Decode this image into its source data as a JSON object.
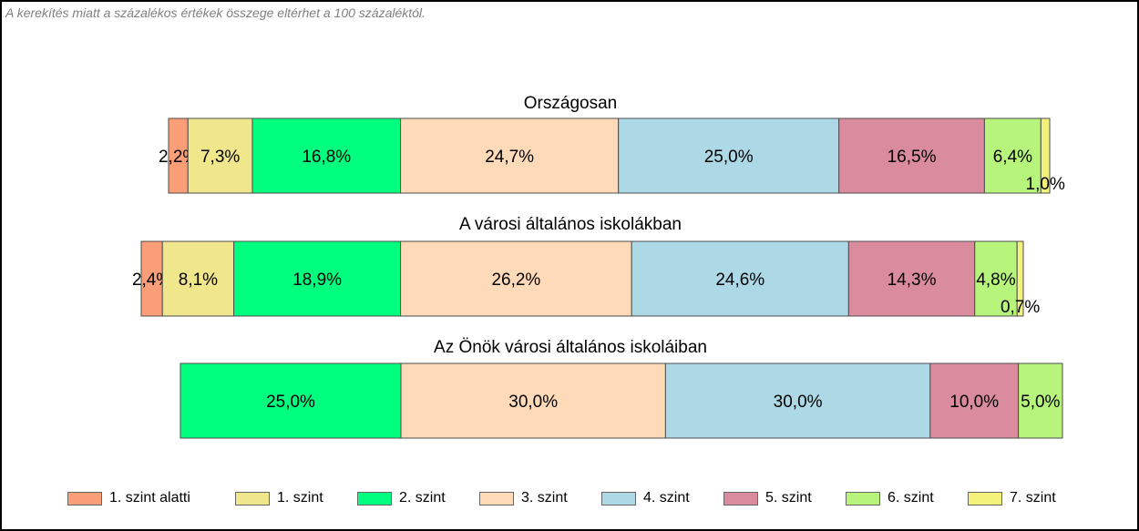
{
  "note": "A kerekítés miatt a  százalékos értékek összege eltérhet a 100 százaléktól.",
  "colors": [
    "#FA9E78",
    "#F0E68C",
    "#00FF7F",
    "#FFDAB9",
    "#ADD8E6",
    "#DB8B9E",
    "#B7F47C",
    "#F2F27A"
  ],
  "chart_data": {
    "type": "bar",
    "orientation": "horizontal-stacked-100",
    "categories": [
      "1. szint alatti",
      "1. szint",
      "2. szint",
      "3. szint",
      "4. szint",
      "5. szint",
      "6. szint",
      "7. szint"
    ],
    "groups": [
      {
        "title": "Országosan",
        "values": [
          2.2,
          7.3,
          16.8,
          24.7,
          25.0,
          16.5,
          6.4,
          1.0
        ],
        "labels": [
          "2,2%",
          "7,3%",
          "16,8%",
          "24,7%",
          "25,0%",
          "16,5%",
          "6,4%",
          "1,0%"
        ]
      },
      {
        "title": "A városi általános iskolákban",
        "values": [
          2.4,
          8.1,
          18.9,
          26.2,
          24.6,
          14.3,
          4.8,
          0.7
        ],
        "labels": [
          "2,4%",
          "8,1%",
          "18,9%",
          "26,2%",
          "24,6%",
          "14,3%",
          "4,8%",
          "0,7%"
        ]
      },
      {
        "title": "Az Önök városi általános iskoláiban",
        "values": [
          0,
          0,
          25.0,
          30.0,
          30.0,
          10.0,
          5.0,
          0
        ],
        "labels": [
          "",
          "",
          "25,0%",
          "30,0%",
          "30,0%",
          "10,0%",
          "5,0%",
          ""
        ]
      }
    ],
    "legend_position": "bottom",
    "grid": false
  }
}
